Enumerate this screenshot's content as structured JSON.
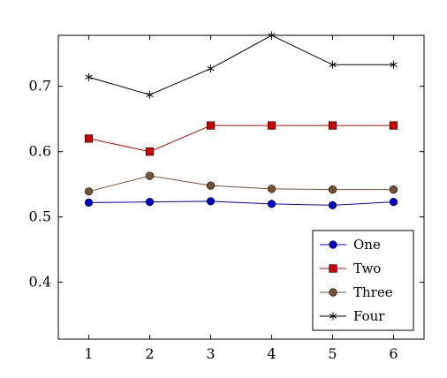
{
  "chart_data": {
    "type": "line",
    "title": "",
    "xlabel": "",
    "ylabel": "",
    "x": [
      1,
      2,
      3,
      4,
      5,
      6
    ],
    "xlim": [
      0.5,
      6.5
    ],
    "ylim": [
      0.313,
      0.778
    ],
    "xticks": [
      1,
      2,
      3,
      4,
      5,
      6
    ],
    "xtick_labels": [
      "1",
      "2",
      "3",
      "4",
      "5",
      "6"
    ],
    "yticks": [
      0.4,
      0.5,
      0.6,
      0.7
    ],
    "ytick_labels": [
      "0.4",
      "0.5",
      "0.6",
      "0.7"
    ],
    "grid": false,
    "legend_position": "bottom-right",
    "series": [
      {
        "name": "One",
        "values": [
          0.522,
          0.523,
          0.524,
          0.52,
          0.518,
          0.523
        ],
        "color": "#0000cc",
        "marker": "circle"
      },
      {
        "name": "Two",
        "values": [
          0.62,
          0.6,
          0.64,
          0.64,
          0.64,
          0.64
        ],
        "color": "#cc0000",
        "marker": "square"
      },
      {
        "name": "Three",
        "values": [
          0.539,
          0.563,
          0.548,
          0.543,
          0.542,
          0.542
        ],
        "color": "#7a5230",
        "marker": "circle"
      },
      {
        "name": "Four",
        "values": [
          0.714,
          0.687,
          0.727,
          0.778,
          0.733,
          0.733
        ],
        "color": "#000000",
        "marker": "star"
      }
    ]
  }
}
